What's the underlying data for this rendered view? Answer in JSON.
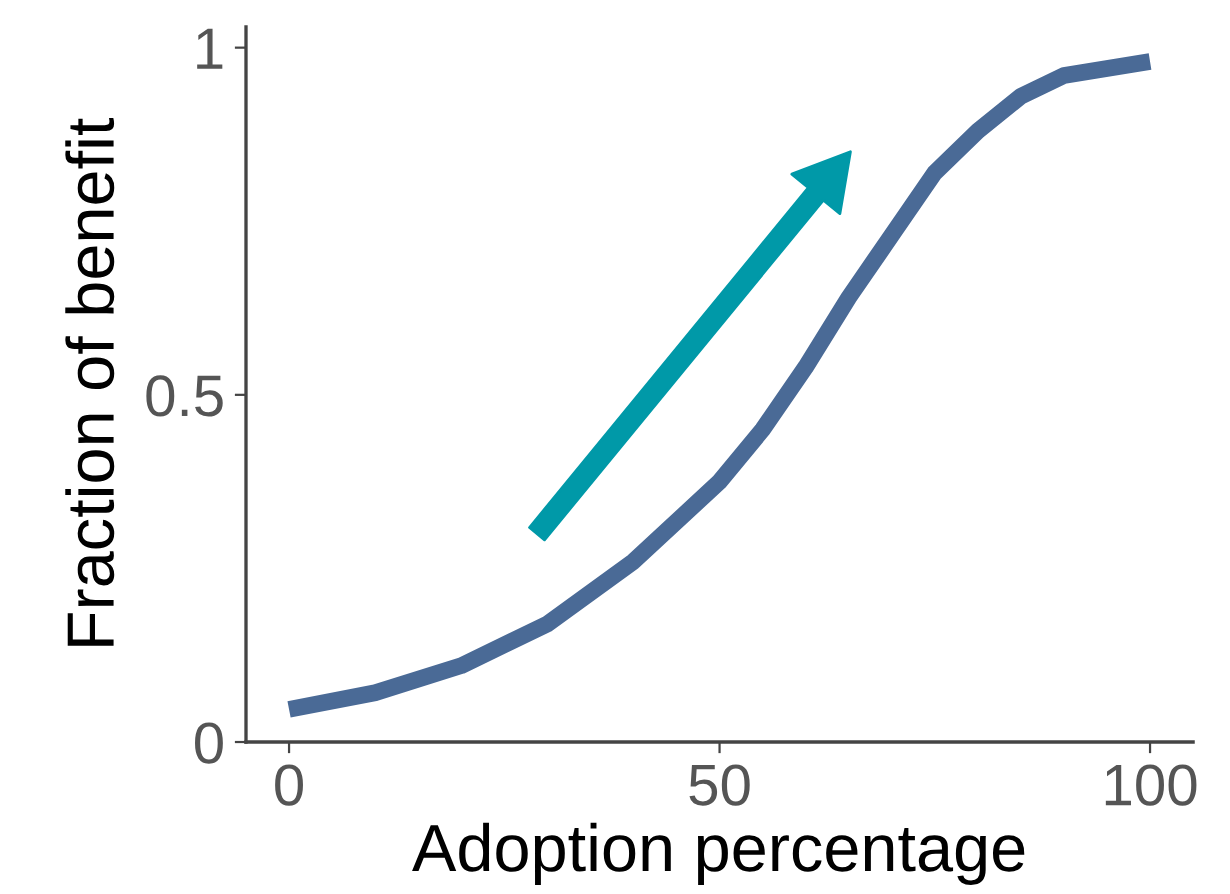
{
  "chart_data": {
    "type": "line",
    "xlabel": "Adoption percentage",
    "ylabel": "Fraction of benefit",
    "x": [
      0,
      10,
      20,
      30,
      40,
      50,
      55,
      60,
      65,
      70,
      75,
      80,
      85,
      90,
      95,
      100
    ],
    "series": [
      {
        "color": "#4a6a96",
        "values": [
          0.047,
          0.071,
          0.11,
          0.17,
          0.26,
          0.375,
          0.45,
          0.54,
          0.64,
          0.73,
          0.82,
          0.88,
          0.93,
          0.96,
          0.97,
          0.98
        ]
      }
    ],
    "xlim": [
      -5,
      105
    ],
    "ylim": [
      0,
      1.03
    ],
    "xticks": [
      0,
      50,
      100
    ],
    "yticks": [
      0,
      0.5,
      1
    ],
    "grid": false,
    "legend": false,
    "marker": "none",
    "line_style": "solid"
  }
}
